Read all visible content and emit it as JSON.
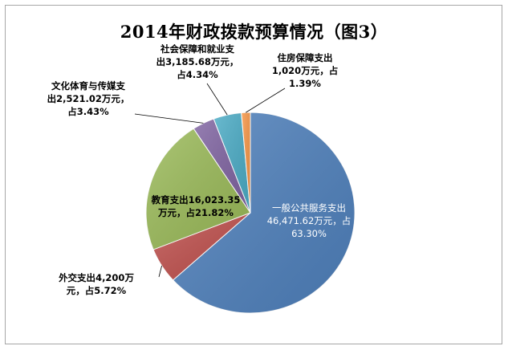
{
  "chart_data": {
    "type": "pie",
    "title": "2014年财政拨款预算情况（图3）",
    "unit": "万元",
    "slices": [
      {
        "category": "一般公共服务支出",
        "value": 46471.62,
        "percent": 63.3,
        "color": "#4f81bd",
        "label_lines": [
          "一般公共服务支出",
          "46,471.62万元，占",
          "63.30%"
        ]
      },
      {
        "category": "外交支出",
        "value": 4200,
        "percent": 5.72,
        "color": "#c0504d",
        "label_lines": [
          "外交支出4,200万",
          "元，占5.72%"
        ]
      },
      {
        "category": "教育支出",
        "value": 16023.35,
        "percent": 21.82,
        "color": "#9bbb59",
        "label_lines": [
          "教育支出16,023.35",
          "万元，占21.82%"
        ]
      },
      {
        "category": "文化体育与传媒支出",
        "value": 2521.02,
        "percent": 3.43,
        "color": "#8064a2",
        "label_lines": [
          "文化体育与传媒支",
          "出2,521.02万元，",
          "占3.43%"
        ]
      },
      {
        "category": "社会保障和就业支出",
        "value": 3185.68,
        "percent": 4.34,
        "color": "#4bacc6",
        "label_lines": [
          "社会保障和就业支",
          "出3,185.68万元，",
          "占4.34%"
        ]
      },
      {
        "category": "住房保障支出",
        "value": 1020,
        "percent": 1.39,
        "color": "#f79646",
        "label_lines": [
          "住房保障支出",
          "1,020万元，占",
          "1.39%"
        ]
      }
    ]
  }
}
